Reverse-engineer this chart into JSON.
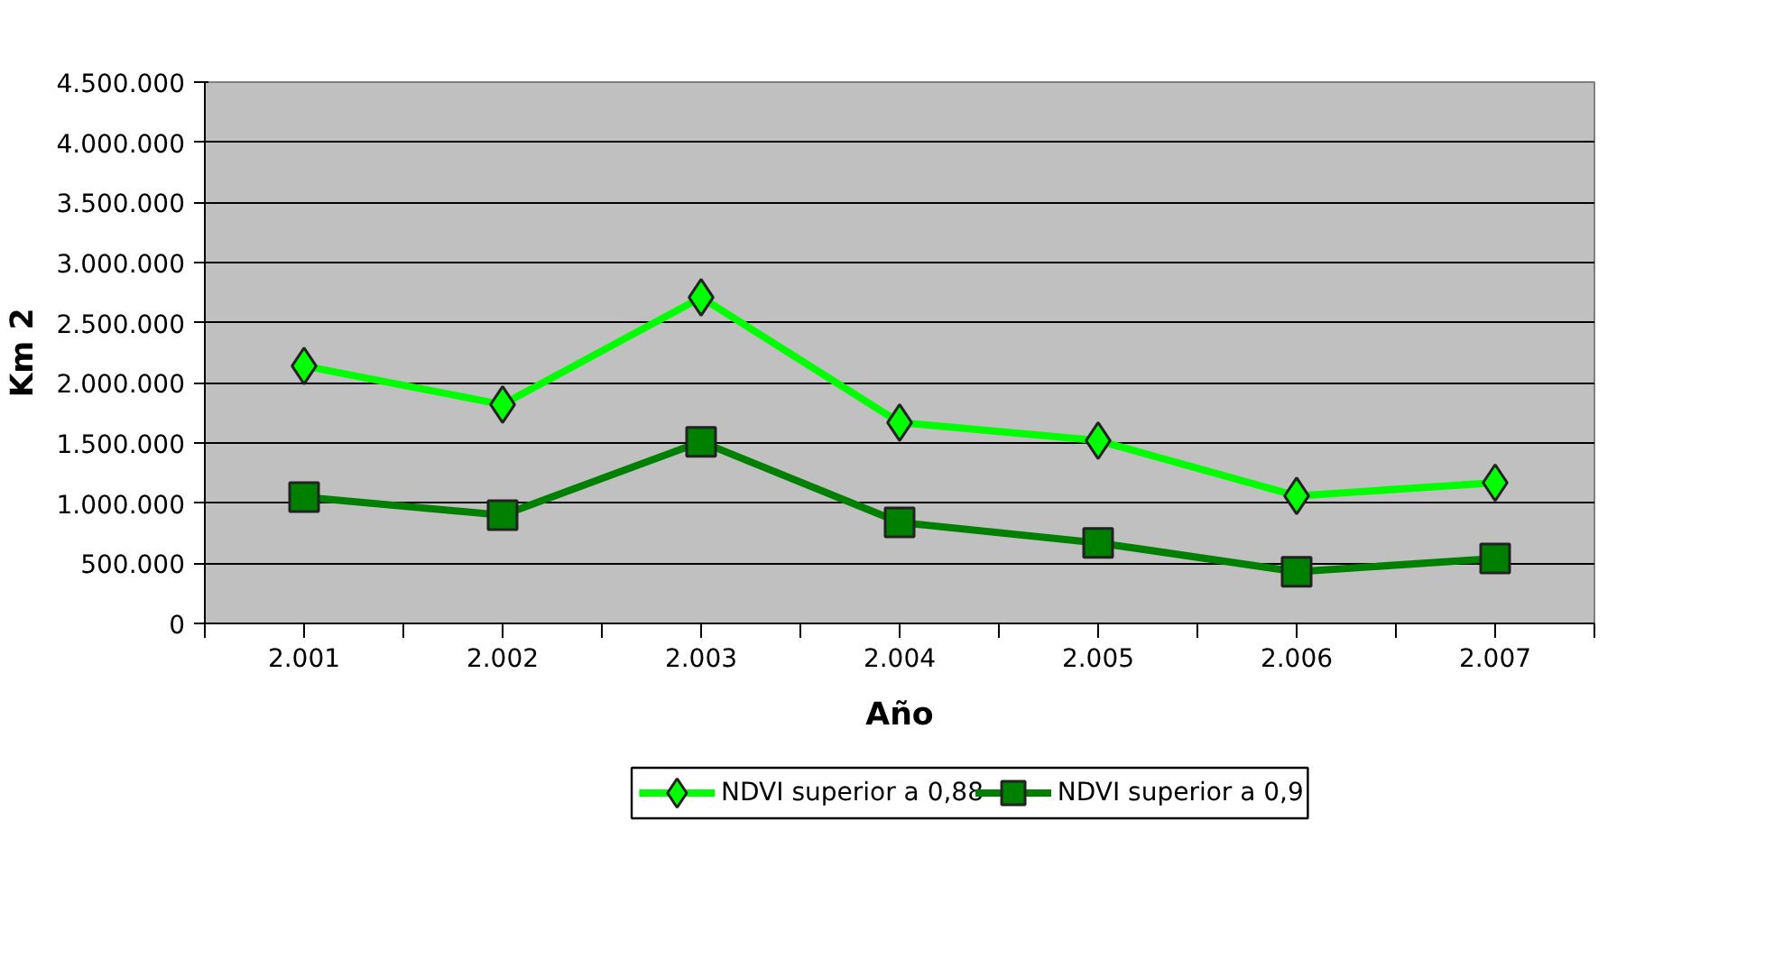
{
  "chart_data": {
    "type": "line",
    "xlabel": "Año",
    "ylabel": "Km 2",
    "categories": [
      "2.001",
      "2.002",
      "2.003",
      "2.004",
      "2.005",
      "2.006",
      "2.007"
    ],
    "series": [
      {
        "name": "NDVI superior a 0,88",
        "color": "#00ff00",
        "marker": "diamond",
        "values": [
          2140000,
          1820000,
          2710000,
          1670000,
          1520000,
          1060000,
          1170000
        ]
      },
      {
        "name": "NDVI superior a 0,9",
        "color": "#008000",
        "marker": "square",
        "values": [
          1050000,
          900000,
          1510000,
          840000,
          670000,
          430000,
          540000
        ]
      }
    ],
    "ylim": [
      0,
      4500000
    ],
    "yticks": [
      {
        "value": 0,
        "label": "0"
      },
      {
        "value": 500000,
        "label": "500.000"
      },
      {
        "value": 1000000,
        "label": "1.000.000"
      },
      {
        "value": 1500000,
        "label": "1.500.000"
      },
      {
        "value": 2000000,
        "label": "2.000.000"
      },
      {
        "value": 2500000,
        "label": "2.500.000"
      },
      {
        "value": 3000000,
        "label": "3.000.000"
      },
      {
        "value": 3500000,
        "label": "3.500.000"
      },
      {
        "value": 4000000,
        "label": "4.000.000"
      },
      {
        "value": 4500000,
        "label": "4.500.000"
      }
    ],
    "grid": "y",
    "legend": "bottom",
    "line_style": "solid"
  }
}
